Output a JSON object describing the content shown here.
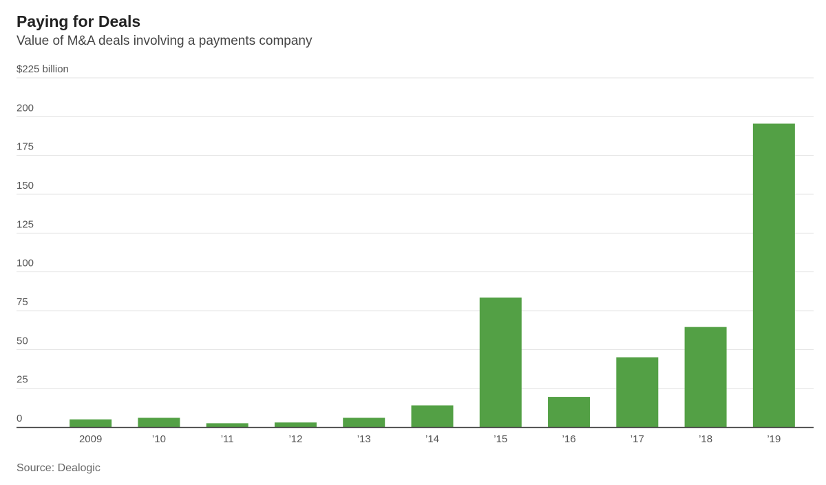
{
  "title": "Paying for Deals",
  "subtitle": "Value of M&A deals involving a payments company",
  "source": "Source: Dealogic",
  "colors": {
    "bar": "#53a045",
    "grid": "#e3e3e3",
    "axis": "#444444"
  },
  "chart_data": {
    "type": "bar",
    "title": "Paying for Deals",
    "subtitle": "Value of M&A deals involving a payments company",
    "categories": [
      "2009",
      "’10",
      "’11",
      "’12",
      "’13",
      "’14",
      "’15",
      "’16",
      "’17",
      "’18",
      "’19"
    ],
    "values": [
      5,
      6,
      2.5,
      3,
      6,
      14,
      83.5,
      19.5,
      45,
      64.5,
      195.5
    ],
    "ylim": [
      0,
      225
    ],
    "yticks": [
      0,
      25,
      50,
      75,
      100,
      125,
      150,
      175,
      200,
      225
    ],
    "ytick_labels": [
      "0",
      "25",
      "50",
      "75",
      "100",
      "125",
      "150",
      "175",
      "200",
      "$225 billion"
    ],
    "xlabel": "",
    "ylabel": "",
    "grid": true
  }
}
